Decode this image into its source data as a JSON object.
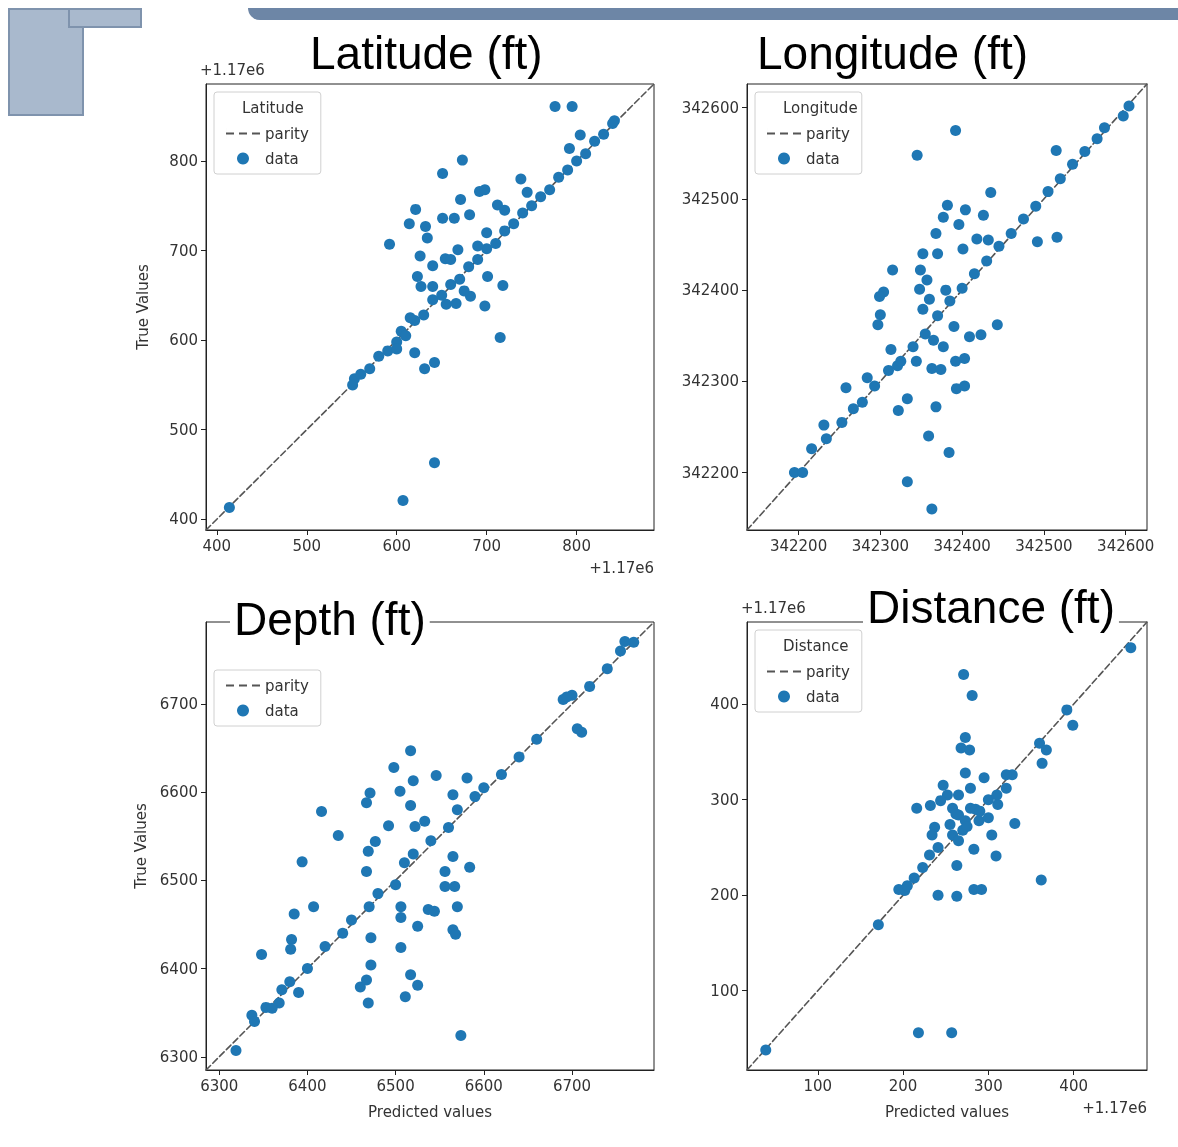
{
  "chart_data": [
    {
      "type": "scatter",
      "title": "Latitude (ft)",
      "ylabel": "True Values",
      "legend_title": "Latitude",
      "legend": "top left",
      "annotations": [
        "+1.17e6",
        "+1.17e6"
      ],
      "xlim": [
        388,
        886
      ],
      "ylim": [
        388,
        886
      ],
      "xticks": [
        400,
        500,
        600,
        700,
        800
      ],
      "yticks": [
        400,
        500,
        600,
        700,
        800
      ],
      "series": [
        {
          "name": "parity",
          "type": "line",
          "line_style": "dashed",
          "marker": "none",
          "color": "#555555",
          "x": [
            388,
            886
          ],
          "values": [
            388,
            886
          ]
        },
        {
          "name": "data",
          "marker": "circle",
          "color": "#1f77b4",
          "x": [
            414,
            607,
            642,
            776,
            795,
            842,
            804,
            792,
            738,
            673,
            651,
            592,
            621,
            614,
            632,
            634,
            651,
            664,
            681,
            671,
            692,
            698,
            712,
            626,
            640,
            654,
            668,
            623,
            627,
            701,
            718,
            698,
            682,
            666,
            715,
            620,
            631,
            642,
            553,
            551,
            560,
            570,
            580,
            590,
            600,
            605,
            610,
            620,
            630,
            640,
            650,
            660,
            670,
            680,
            690,
            700,
            710,
            720,
            730,
            740,
            750,
            760,
            770,
            780,
            790,
            800,
            810,
            820,
            830,
            840,
            600,
            615,
            640,
            660,
            690,
            700,
            720,
            745,
            655,
            675
          ],
          "values": [
            413,
            421,
            463,
            861,
            861,
            845,
            829,
            814,
            780,
            801,
            786,
            707,
            746,
            730,
            727,
            714,
            736,
            736,
            740,
            757,
            766,
            768,
            751,
            694,
            683,
            691,
            701,
            671,
            660,
            671,
            661,
            638,
            649,
            641,
            603,
            586,
            568,
            575,
            557,
            550,
            562,
            568,
            582,
            588,
            598,
            610,
            605,
            622,
            628,
            645,
            650,
            662,
            668,
            682,
            690,
            702,
            708,
            722,
            730,
            742,
            750,
            760,
            768,
            782,
            790,
            800,
            808,
            822,
            830,
            842,
            590,
            625,
            660,
            690,
            705,
            720,
            745,
            765,
            640,
            655
          ]
        }
      ]
    },
    {
      "type": "scatter",
      "title": "Longitude (ft)",
      "legend_title": "Longitude",
      "legend": "top left",
      "xlim": [
        342137,
        342626
      ],
      "ylim": [
        342137,
        342626
      ],
      "xticks": [
        342200,
        342300,
        342400,
        342500,
        342600
      ],
      "yticks": [
        342200,
        342300,
        342400,
        342500,
        342600
      ],
      "series": [
        {
          "name": "parity",
          "type": "line",
          "line_style": "dashed",
          "marker": "none",
          "color": "#555555",
          "x": [
            342137,
            342626
          ],
          "values": [
            342137,
            342626
          ]
        },
        {
          "name": "data",
          "marker": "circle",
          "color": "#1f77b4",
          "x": [
            342392,
            342345,
            342515,
            342435,
            342382,
            342404,
            342426,
            342377,
            342396,
            342368,
            342418,
            342432,
            342352,
            342370,
            342401,
            342315,
            342349,
            342357,
            342304,
            342299,
            342348,
            342300,
            342297,
            342492,
            342516,
            342443,
            342423,
            342409,
            342352,
            342313,
            342321,
            342344,
            342363,
            342374,
            342392,
            342403,
            342377,
            342393,
            342403,
            342333,
            342322,
            342368,
            342258,
            342284,
            342359,
            342384,
            342333,
            342363,
            342231,
            342195,
            342205,
            342216,
            342234,
            342253,
            342267,
            342278,
            342293,
            342310,
            342325,
            342340,
            342355,
            342370,
            342385,
            342400,
            342415,
            342430,
            342445,
            342460,
            342475,
            342490,
            342505,
            342520,
            342535,
            342550,
            342565,
            342604,
            342597,
            342574,
            342360,
            342380,
            342390,
            342365
          ],
          "values": [
            342575,
            342548,
            342553,
            342507,
            342493,
            342488,
            342482,
            342480,
            342472,
            342462,
            342456,
            342455,
            342440,
            342440,
            342445,
            342422,
            342422,
            342411,
            342398,
            342393,
            342401,
            342373,
            342362,
            342453,
            342458,
            342362,
            342351,
            342349,
            342379,
            342335,
            342317,
            342322,
            342314,
            342313,
            342322,
            342325,
            342338,
            342292,
            342295,
            342281,
            342268,
            342272,
            342293,
            342304,
            342240,
            342222,
            342190,
            342160,
            342252,
            342200,
            342200,
            342226,
            342237,
            342255,
            342270,
            342277,
            342295,
            342312,
            342322,
            342338,
            342352,
            342372,
            342388,
            342402,
            342418,
            342432,
            342448,
            342462,
            342478,
            342492,
            342508,
            342522,
            342538,
            342552,
            342566,
            342602,
            342591,
            342578,
            342390,
            342400,
            342360,
            342345
          ]
        }
      ]
    },
    {
      "type": "scatter",
      "title": "Depth (ft)",
      "xlabel": "Predicted values",
      "ylabel": "True Values",
      "legend": "top left",
      "xlim": [
        6285,
        6793
      ],
      "ylim": [
        6285,
        6793
      ],
      "xticks": [
        6300,
        6400,
        6500,
        6600,
        6700
      ],
      "yticks": [
        6300,
        6400,
        6500,
        6600,
        6700
      ],
      "series": [
        {
          "name": "parity",
          "type": "line",
          "line_style": "dashed",
          "marker": "none",
          "color": "#555555",
          "x": [
            6285,
            6793
          ],
          "values": [
            6285,
            6793
          ]
        },
        {
          "name": "data",
          "marker": "circle",
          "color": "#1f77b4",
          "x": [
            6319,
            6574,
            6517,
            6498,
            6546,
            6581,
            6520,
            6471,
            6467,
            6505,
            6517,
            6565,
            6416,
            6492,
            6533,
            6522,
            6435,
            6477,
            6469,
            6394,
            6467,
            6556,
            6584,
            6565,
            6556,
            6567,
            6407,
            6385,
            6506,
            6537,
            6506,
            6570,
            6544,
            6525,
            6565,
            6568,
            6348,
            6382,
            6381,
            6472,
            6506,
            6472,
            6460,
            6467,
            6469,
            6517,
            6525,
            6511,
            6390,
            6371,
            6337,
            6353,
            6368,
            6340,
            6360,
            6380,
            6400,
            6420,
            6440,
            6450,
            6470,
            6480,
            6500,
            6510,
            6520,
            6540,
            6560,
            6570,
            6590,
            6600,
            6620,
            6640,
            6660,
            6690,
            6700,
            6720,
            6740,
            6755,
            6770,
            6711,
            6706,
            6694,
            6760
          ],
          "values": [
            6307,
            6324,
            6647,
            6628,
            6619,
            6616,
            6613,
            6599,
            6588,
            6601,
            6585,
            6597,
            6578,
            6562,
            6567,
            6561,
            6551,
            6544,
            6533,
            6521,
            6510,
            6510,
            6515,
            6527,
            6493,
            6493,
            6470,
            6462,
            6470,
            6467,
            6458,
            6470,
            6465,
            6448,
            6444,
            6439,
            6416,
            6433,
            6422,
            6435,
            6424,
            6404,
            6379,
            6387,
            6361,
            6393,
            6381,
            6368,
            6373,
            6376,
            6347,
            6356,
            6361,
            6340,
            6355,
            6385,
            6400,
            6425,
            6440,
            6455,
            6470,
            6485,
            6495,
            6520,
            6530,
            6545,
            6560,
            6580,
            6595,
            6605,
            6620,
            6640,
            6660,
            6705,
            6710,
            6720,
            6740,
            6760,
            6770,
            6668,
            6672,
            6708,
            6771
          ]
        }
      ]
    },
    {
      "type": "scatter",
      "title": "Distance (ft)",
      "xlabel": "Predicted values",
      "legend_title": "Distance",
      "legend": "top left",
      "annotations": [
        "+1.17e6",
        "+1.17e6"
      ],
      "xlim": [
        17,
        486
      ],
      "ylim": [
        17,
        486
      ],
      "xticks": [
        100,
        200,
        300,
        400
      ],
      "yticks": [
        100,
        200,
        300,
        400
      ],
      "series": [
        {
          "name": "parity",
          "type": "line",
          "line_style": "dashed",
          "marker": "none",
          "color": "#555555",
          "x": [
            17,
            486
          ],
          "values": [
            17,
            486
          ]
        },
        {
          "name": "data",
          "marker": "circle",
          "color": "#1f77b4",
          "x": [
            39,
            218,
            257,
            171,
            271,
            281,
            273,
            268,
            278,
            392,
            399,
            360,
            368,
            363,
            467,
            273,
            295,
            216,
            232,
            331,
            237,
            234,
            309,
            362,
            241,
            263,
            283,
            292,
            263,
            283,
            202,
            195,
            247,
            252,
            258,
            328,
            321,
            265,
            273,
            279,
            289,
            300,
            311,
            321,
            258,
            241,
            231,
            223,
            213,
            205,
            255,
            244,
            265,
            279,
            304,
            265,
            270,
            262,
            275,
            285,
            290,
            300,
            310
          ],
          "values": [
            38,
            56,
            56,
            169,
            431,
            409,
            365,
            354,
            352,
            394,
            378,
            359,
            352,
            338,
            459,
            328,
            323,
            291,
            294,
            275,
            271,
            263,
            241,
            216,
            200,
            199,
            206,
            206,
            231,
            248,
            205,
            206,
            315,
            305,
            291,
            326,
            326,
            284,
            278,
            291,
            278,
            281,
            295,
            312,
            263,
            250,
            242,
            229,
            218,
            210,
            274,
            299,
            305,
            312,
            263,
            257,
            268,
            285,
            272,
            290,
            288,
            300,
            305
          ]
        }
      ]
    }
  ]
}
